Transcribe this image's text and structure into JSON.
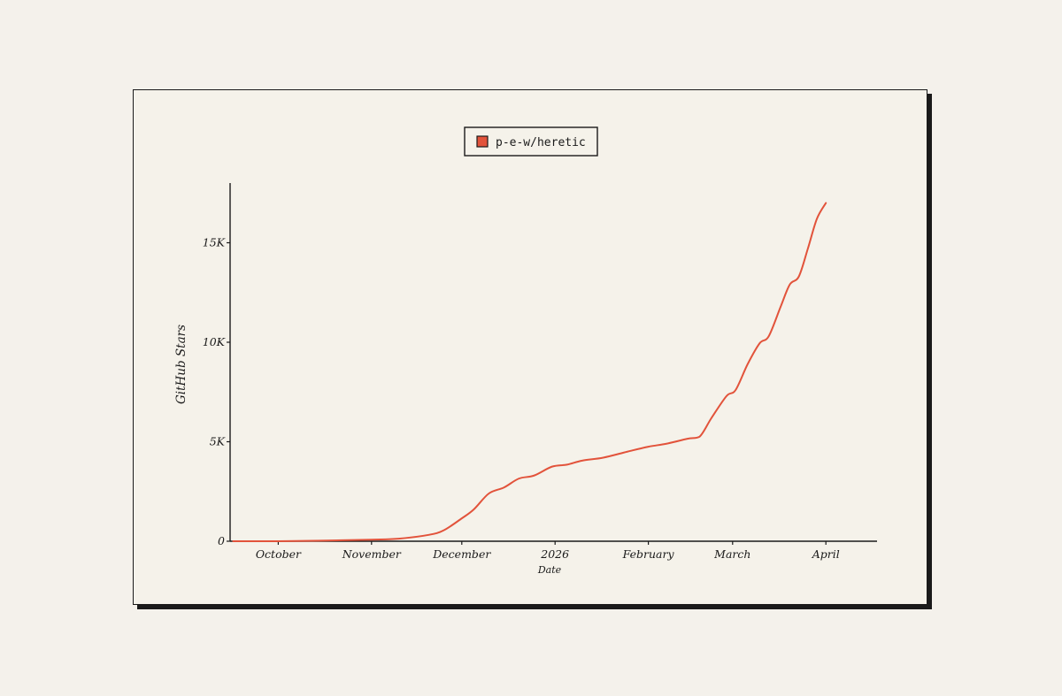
{
  "chart_data": {
    "type": "line",
    "title": "",
    "xlabel": "Date",
    "ylabel": "GitHub Stars",
    "x_ticks": [
      {
        "date": "2025-10-01",
        "label": "October"
      },
      {
        "date": "2025-11-01",
        "label": "November"
      },
      {
        "date": "2025-12-01",
        "label": "December"
      },
      {
        "date": "2026-01-01",
        "label": "2026"
      },
      {
        "date": "2026-02-01",
        "label": "February"
      },
      {
        "date": "2026-03-01",
        "label": "March"
      },
      {
        "date": "2026-04-01",
        "label": "April"
      }
    ],
    "y_ticks": [
      {
        "value": 0,
        "label": "0"
      },
      {
        "value": 5000,
        "label": "5K"
      },
      {
        "value": 10000,
        "label": "10K"
      },
      {
        "value": 15000,
        "label": "15K"
      }
    ],
    "xlim": [
      "2025-09-15",
      "2026-04-18"
    ],
    "ylim": [
      0,
      18000
    ],
    "grid": false,
    "legend_position": "top-center",
    "series": [
      {
        "name": "p-e-w/heretic",
        "color": "#e2533b",
        "points": [
          {
            "x": "2025-09-16",
            "y": 0
          },
          {
            "x": "2025-10-01",
            "y": 0
          },
          {
            "x": "2025-10-15",
            "y": 30
          },
          {
            "x": "2025-11-01",
            "y": 80
          },
          {
            "x": "2025-11-10",
            "y": 130
          },
          {
            "x": "2025-11-20",
            "y": 320
          },
          {
            "x": "2025-11-25",
            "y": 550
          },
          {
            "x": "2025-12-01",
            "y": 1150
          },
          {
            "x": "2025-12-05",
            "y": 1600
          },
          {
            "x": "2025-12-10",
            "y": 2400
          },
          {
            "x": "2025-12-15",
            "y": 2700
          },
          {
            "x": "2025-12-20",
            "y": 3150
          },
          {
            "x": "2025-12-25",
            "y": 3300
          },
          {
            "x": "2025-12-31",
            "y": 3750
          },
          {
            "x": "2026-01-05",
            "y": 3850
          },
          {
            "x": "2026-01-10",
            "y": 4050
          },
          {
            "x": "2026-01-17",
            "y": 4200
          },
          {
            "x": "2026-01-25",
            "y": 4500
          },
          {
            "x": "2026-02-01",
            "y": 4750
          },
          {
            "x": "2026-02-07",
            "y": 4900
          },
          {
            "x": "2026-02-14",
            "y": 5150
          },
          {
            "x": "2026-02-18",
            "y": 5250
          },
          {
            "x": "2026-02-22",
            "y": 6200
          },
          {
            "x": "2026-02-27",
            "y": 7300
          },
          {
            "x": "2026-03-02",
            "y": 7600
          },
          {
            "x": "2026-03-06",
            "y": 8900
          },
          {
            "x": "2026-03-10",
            "y": 9950
          },
          {
            "x": "2026-03-13",
            "y": 10300
          },
          {
            "x": "2026-03-17",
            "y": 11800
          },
          {
            "x": "2026-03-20",
            "y": 12900
          },
          {
            "x": "2026-03-23",
            "y": 13300
          },
          {
            "x": "2026-03-26",
            "y": 14700
          },
          {
            "x": "2026-03-29",
            "y": 16200
          },
          {
            "x": "2026-04-01",
            "y": 17000
          }
        ]
      }
    ]
  }
}
